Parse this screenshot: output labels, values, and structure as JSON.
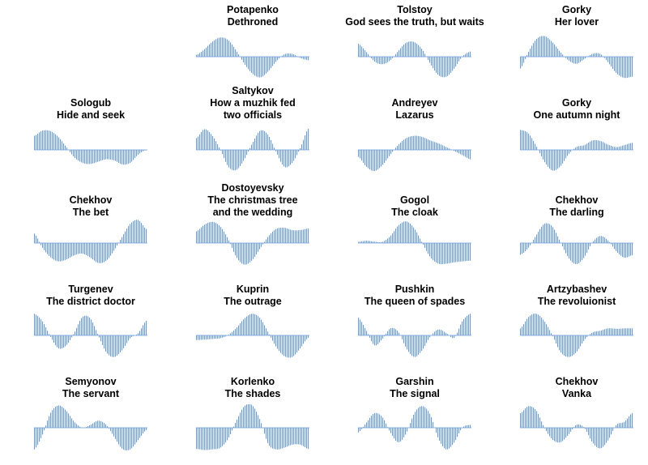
{
  "colors": {
    "bar": "#6b9bd6",
    "background": "#ffffff"
  },
  "chart_data": [
    {
      "type": "bar",
      "title": [
        "Potapenko",
        "Dethroned"
      ],
      "values": [
        0.08,
        0.32,
        0.64,
        0.82,
        0.7,
        0.25,
        -0.3,
        -0.72,
        -0.88,
        -0.62,
        -0.2,
        0.1,
        0.12,
        -0.05,
        -0.15
      ]
    },
    {
      "type": "bar",
      "title": [
        "Tolstoy",
        "God sees the truth, but waits"
      ],
      "values": [
        0.55,
        0.2,
        -0.2,
        -0.32,
        -0.15,
        0.25,
        0.6,
        0.62,
        0.3,
        -0.3,
        -0.78,
        -0.85,
        -0.5,
        0.0,
        0.22
      ]
    },
    {
      "type": "bar",
      "title": [
        "Gorky",
        "Her lover"
      ],
      "values": [
        -0.5,
        0.2,
        0.75,
        0.88,
        0.62,
        0.2,
        -0.15,
        -0.3,
        -0.1,
        0.12,
        0.12,
        -0.25,
        -0.7,
        -0.9,
        -0.85
      ]
    },
    {
      "type": "bar",
      "title": [
        "Sologub",
        "Hide and seek"
      ],
      "values": [
        0.6,
        0.82,
        0.8,
        0.55,
        0.12,
        -0.32,
        -0.55,
        -0.6,
        -0.5,
        -0.4,
        -0.45,
        -0.62,
        -0.55,
        -0.2,
        0.0
      ]
    },
    {
      "type": "bar",
      "title": [
        "Saltykov",
        "How a muzhik fed",
        "two officials"
      ],
      "values": [
        0.5,
        0.88,
        0.6,
        0.0,
        -0.72,
        -0.85,
        -0.4,
        0.28,
        0.82,
        0.62,
        -0.1,
        -0.72,
        -0.55,
        0.08,
        0.9
      ]
    },
    {
      "type": "bar",
      "title": [
        "Andreyev",
        "Lazarus"
      ],
      "values": [
        -0.3,
        -0.72,
        -0.9,
        -0.65,
        -0.2,
        0.22,
        0.5,
        0.6,
        0.55,
        0.4,
        0.28,
        0.12,
        -0.05,
        -0.22,
        -0.4
      ]
    },
    {
      "type": "bar",
      "title": [
        "Gorky",
        "One autumn night"
      ],
      "values": [
        0.85,
        0.7,
        0.15,
        -0.5,
        -0.88,
        -0.7,
        -0.2,
        0.12,
        0.2,
        0.4,
        0.38,
        0.22,
        0.12,
        0.2,
        0.3
      ]
    },
    {
      "type": "bar",
      "title": [
        "Chekhov",
        "The bet"
      ],
      "values": [
        0.4,
        -0.2,
        -0.6,
        -0.78,
        -0.7,
        -0.52,
        -0.45,
        -0.62,
        -0.85,
        -0.75,
        -0.3,
        0.28,
        0.82,
        0.98,
        0.6
      ]
    },
    {
      "type": "bar",
      "title": [
        "Dostoyevsky",
        "The christmas tree",
        "and the wedding"
      ],
      "values": [
        0.5,
        0.78,
        0.9,
        0.7,
        0.15,
        -0.6,
        -0.92,
        -0.72,
        -0.22,
        0.28,
        0.6,
        0.65,
        0.55,
        0.55,
        0.62
      ]
    },
    {
      "type": "bar",
      "title": [
        "Gogol",
        "The cloak"
      ],
      "values": [
        0.05,
        0.1,
        0.06,
        0.05,
        0.3,
        0.75,
        0.92,
        0.62,
        0.0,
        -0.6,
        -0.88,
        -0.88,
        -0.82,
        -0.78,
        -0.75
      ]
    },
    {
      "type": "bar",
      "title": [
        "Chekhov",
        "The darling"
      ],
      "values": [
        -0.5,
        -0.2,
        0.35,
        0.82,
        0.7,
        0.05,
        -0.62,
        -0.9,
        -0.6,
        0.02,
        0.3,
        0.1,
        -0.35,
        -0.62,
        -0.52
      ]
    },
    {
      "type": "bar",
      "title": [
        "Turgenev",
        "The district doctor"
      ],
      "values": [
        0.92,
        0.6,
        -0.05,
        -0.55,
        -0.42,
        0.12,
        0.78,
        0.72,
        0.0,
        -0.72,
        -0.92,
        -0.62,
        -0.12,
        0.1,
        0.62
      ]
    },
    {
      "type": "bar",
      "title": [
        "Kuprin",
        "The outrage"
      ],
      "values": [
        -0.2,
        -0.18,
        -0.15,
        -0.12,
        0.02,
        0.32,
        0.72,
        0.92,
        0.72,
        0.12,
        -0.5,
        -0.88,
        -0.92,
        -0.55,
        -0.1
      ]
    },
    {
      "type": "bar",
      "title": [
        "Pushkin",
        "The queen of spades"
      ],
      "values": [
        0.75,
        0.2,
        -0.42,
        -0.15,
        0.3,
        0.15,
        -0.55,
        -0.92,
        -0.62,
        -0.05,
        0.25,
        0.1,
        -0.1,
        0.6,
        0.92
      ]
    },
    {
      "type": "bar",
      "title": [
        "Artzybashev",
        "The revoluionist"
      ],
      "values": [
        0.3,
        0.78,
        0.92,
        0.6,
        0.0,
        -0.7,
        -0.92,
        -0.72,
        -0.2,
        0.12,
        0.2,
        0.3,
        0.28,
        0.3,
        0.3
      ]
    },
    {
      "type": "bar",
      "title": [
        "Semyonov",
        "The servant"
      ],
      "values": [
        -0.92,
        -0.3,
        0.62,
        0.95,
        0.72,
        0.25,
        0.0,
        0.12,
        0.3,
        0.12,
        -0.4,
        -0.9,
        -0.92,
        -0.52,
        -0.1
      ]
    },
    {
      "type": "bar",
      "title": [
        "Korlenko",
        "The shades"
      ],
      "values": [
        -0.9,
        -0.95,
        -0.92,
        -0.85,
        -0.45,
        0.3,
        0.92,
        0.95,
        0.3,
        -0.7,
        -0.92,
        -0.85,
        -0.72,
        -0.72,
        -0.9
      ]
    },
    {
      "type": "bar",
      "title": [
        "Garshin",
        "The signal"
      ],
      "values": [
        -0.2,
        0.22,
        0.62,
        0.45,
        -0.2,
        -0.62,
        -0.22,
        0.62,
        0.92,
        0.55,
        -0.45,
        -0.92,
        -0.62,
        0.0,
        0.12
      ]
    },
    {
      "type": "bar",
      "title": [
        "Chekhov",
        "Vanka"
      ],
      "values": [
        0.62,
        0.92,
        0.72,
        0.0,
        -0.5,
        -0.62,
        -0.3,
        0.12,
        0.0,
        -0.62,
        -0.88,
        -0.52,
        0.12,
        0.25,
        0.62
      ]
    }
  ]
}
